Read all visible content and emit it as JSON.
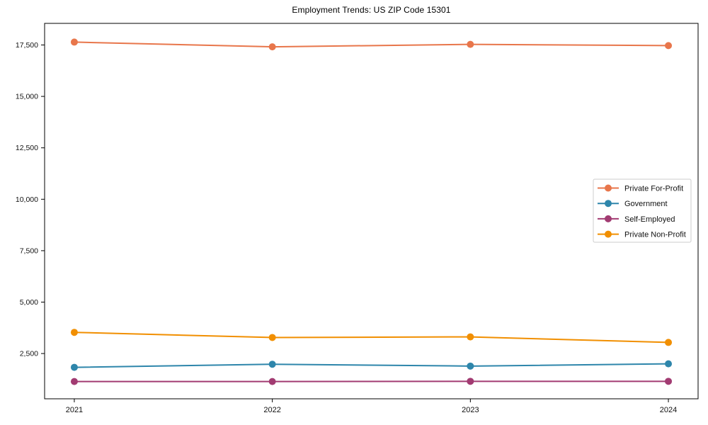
{
  "chart_data": {
    "type": "line",
    "title": "Employment Trends: US ZIP Code 15301",
    "xlabel": "",
    "ylabel": "",
    "x": [
      2021,
      2022,
      2023,
      2024
    ],
    "xtick_labels": [
      "2021",
      "2022",
      "2023",
      "2024"
    ],
    "yticks": [
      2500,
      5000,
      7500,
      10000,
      12500,
      15000,
      17500
    ],
    "ytick_labels": [
      "2,500",
      "5,000",
      "7,500",
      "10,000",
      "12,500",
      "15,000",
      "17,500"
    ],
    "xlim": [
      2020.85,
      2024.15
    ],
    "ylim": [
      300,
      18550
    ],
    "grid": false,
    "legend_position": "center-right",
    "series": [
      {
        "name": "Private For-Profit",
        "color": "#E8764B",
        "values": [
          17640,
          17410,
          17530,
          17470
        ]
      },
      {
        "name": "Government",
        "color": "#2E86AB",
        "values": [
          1830,
          1980,
          1890,
          2000
        ]
      },
      {
        "name": "Self-Employed",
        "color": "#A23B72",
        "values": [
          1140,
          1140,
          1150,
          1150
        ]
      },
      {
        "name": "Private Non-Profit",
        "color": "#F18F01",
        "values": [
          3530,
          3280,
          3310,
          3040
        ]
      }
    ],
    "colors": {
      "axis": "#000000",
      "text": "#111111",
      "legend_border": "#cccccc",
      "background": "#ffffff"
    }
  }
}
